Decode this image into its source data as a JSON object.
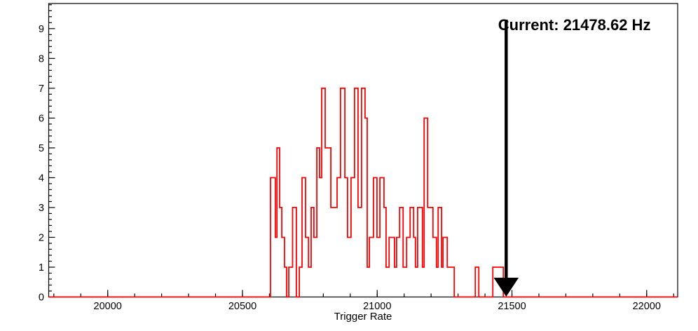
{
  "figure": {
    "background": "#ffffff",
    "frame_color": "#000000"
  },
  "annotation": {
    "label": "Current: 21478.62 Hz",
    "current_hz": 21478.62,
    "arrow_color": "#000000"
  },
  "chart_data": {
    "type": "step-histogram",
    "title": "",
    "xlabel": "Trigger Rate",
    "ylabel": "",
    "xlim": [
      19781,
      22115
    ],
    "ylim": [
      0,
      9.842
    ],
    "grid": false,
    "legend": "none",
    "series_color": "#ff0000",
    "x_major_ticks": [
      20000,
      20500,
      21000,
      21500,
      22000
    ],
    "x_major_tick_labels": [
      "20000",
      "20500",
      "21000",
      "21500",
      "22000"
    ],
    "x_minor_step": 100,
    "y_major_ticks": [
      0,
      1,
      2,
      3,
      4,
      5,
      6,
      7,
      8,
      9
    ],
    "y_major_tick_labels": [
      "0",
      "1",
      "2",
      "3",
      "4",
      "5",
      "6",
      "7",
      "8",
      "9"
    ],
    "y_minor_step": 0.2,
    "segments_comment": "step histogram as [start_hz, end_hz, count]",
    "segments": [
      [
        19781,
        20604,
        0
      ],
      [
        20604,
        20622,
        4
      ],
      [
        20622,
        20628,
        2
      ],
      [
        20628,
        20638,
        5
      ],
      [
        20638,
        20646,
        3
      ],
      [
        20646,
        20656,
        2
      ],
      [
        20656,
        20664,
        1
      ],
      [
        20664,
        20672,
        0
      ],
      [
        20672,
        20686,
        1
      ],
      [
        20686,
        20700,
        3
      ],
      [
        20700,
        20711,
        0
      ],
      [
        20711,
        20721,
        1
      ],
      [
        20721,
        20734,
        4
      ],
      [
        20734,
        20745,
        2
      ],
      [
        20745,
        20755,
        1
      ],
      [
        20755,
        20765,
        3
      ],
      [
        20765,
        20776,
        2
      ],
      [
        20776,
        20786,
        5
      ],
      [
        20786,
        20794,
        4
      ],
      [
        20794,
        20807,
        7
      ],
      [
        20807,
        20828,
        5
      ],
      [
        20828,
        20851,
        3
      ],
      [
        20851,
        20864,
        4
      ],
      [
        20864,
        20880,
        7
      ],
      [
        20880,
        20890,
        4
      ],
      [
        20890,
        20903,
        2
      ],
      [
        20903,
        20916,
        4
      ],
      [
        20916,
        20929,
        7
      ],
      [
        20929,
        20942,
        3
      ],
      [
        20942,
        20955,
        7
      ],
      [
        20955,
        20963,
        6
      ],
      [
        20963,
        20971,
        1
      ],
      [
        20971,
        20986,
        2
      ],
      [
        20986,
        20999,
        4
      ],
      [
        20999,
        21010,
        2
      ],
      [
        21010,
        21025,
        4
      ],
      [
        21025,
        21033,
        3
      ],
      [
        21033,
        21044,
        1
      ],
      [
        21044,
        21064,
        2
      ],
      [
        21064,
        21072,
        1
      ],
      [
        21072,
        21083,
        2
      ],
      [
        21083,
        21096,
        3
      ],
      [
        21096,
        21109,
        1
      ],
      [
        21109,
        21122,
        2
      ],
      [
        21122,
        21135,
        3
      ],
      [
        21135,
        21142,
        2
      ],
      [
        21142,
        21150,
        1
      ],
      [
        21150,
        21168,
        3
      ],
      [
        21168,
        21174,
        1
      ],
      [
        21174,
        21187,
        6
      ],
      [
        21187,
        21207,
        3
      ],
      [
        21207,
        21220,
        2
      ],
      [
        21220,
        21226,
        1
      ],
      [
        21226,
        21239,
        3
      ],
      [
        21239,
        21244,
        1
      ],
      [
        21244,
        21260,
        2
      ],
      [
        21260,
        21286,
        1
      ],
      [
        21286,
        21364,
        0
      ],
      [
        21364,
        21377,
        1
      ],
      [
        21377,
        21429,
        0
      ],
      [
        21429,
        21468,
        1
      ],
      [
        21468,
        22115,
        0
      ]
    ]
  }
}
